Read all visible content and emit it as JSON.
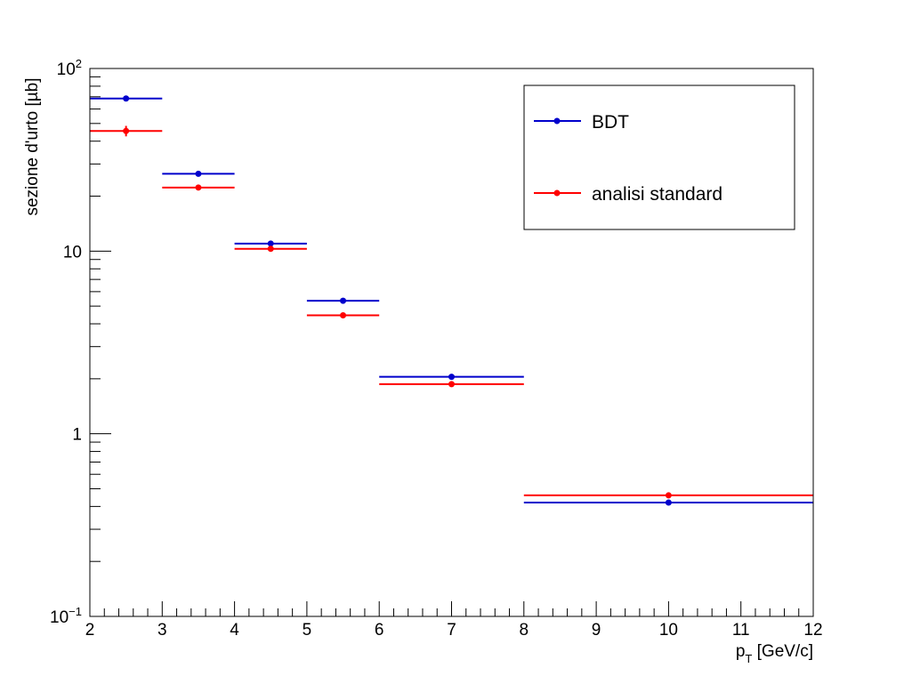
{
  "chart_data": {
    "type": "scatter",
    "xlabel_main": "p",
    "xlabel_sub": "T",
    "xlabel_unit": " [GeV/c]",
    "ylabel": "sezione d'urto [µb]",
    "xlim": [
      2,
      12
    ],
    "ylim": [
      0.1,
      100
    ],
    "yscale": "log",
    "xticks": [
      "2",
      "3",
      "4",
      "5",
      "6",
      "7",
      "8",
      "9",
      "10",
      "11",
      "12"
    ],
    "yticks": [
      {
        "base": "10",
        "exp": "−1",
        "value": 0.1
      },
      {
        "base": "1",
        "exp": "",
        "value": 1
      },
      {
        "base": "10",
        "exp": "",
        "value": 10
      },
      {
        "base": "10",
        "exp": "2",
        "value": 100
      }
    ],
    "legend_position": "top-right",
    "series": [
      {
        "name": "BDT",
        "color": "#0000cc",
        "points": [
          {
            "x": 2.5,
            "xlo": 2,
            "xhi": 3,
            "y": 68.5
          },
          {
            "x": 3.5,
            "xlo": 3,
            "xhi": 4,
            "y": 26.5
          },
          {
            "x": 4.5,
            "xlo": 4,
            "xhi": 5,
            "y": 11.0
          },
          {
            "x": 5.5,
            "xlo": 5,
            "xhi": 6,
            "y": 5.35
          },
          {
            "x": 7.0,
            "xlo": 6,
            "xhi": 8,
            "y": 2.05
          },
          {
            "x": 10.0,
            "xlo": 8,
            "xhi": 12,
            "y": 0.42
          }
        ]
      },
      {
        "name": "analisi standard",
        "color": "#ff0000",
        "points": [
          {
            "x": 2.5,
            "xlo": 2,
            "xhi": 3,
            "y": 45.5,
            "yerr": 3.0
          },
          {
            "x": 3.5,
            "xlo": 3,
            "xhi": 4,
            "y": 22.3
          },
          {
            "x": 4.5,
            "xlo": 4,
            "xhi": 5,
            "y": 10.3
          },
          {
            "x": 5.5,
            "xlo": 5,
            "xhi": 6,
            "y": 4.45
          },
          {
            "x": 7.0,
            "xlo": 6,
            "xhi": 8,
            "y": 1.87
          },
          {
            "x": 10.0,
            "xlo": 8,
            "xhi": 12,
            "y": 0.46
          }
        ]
      }
    ]
  }
}
